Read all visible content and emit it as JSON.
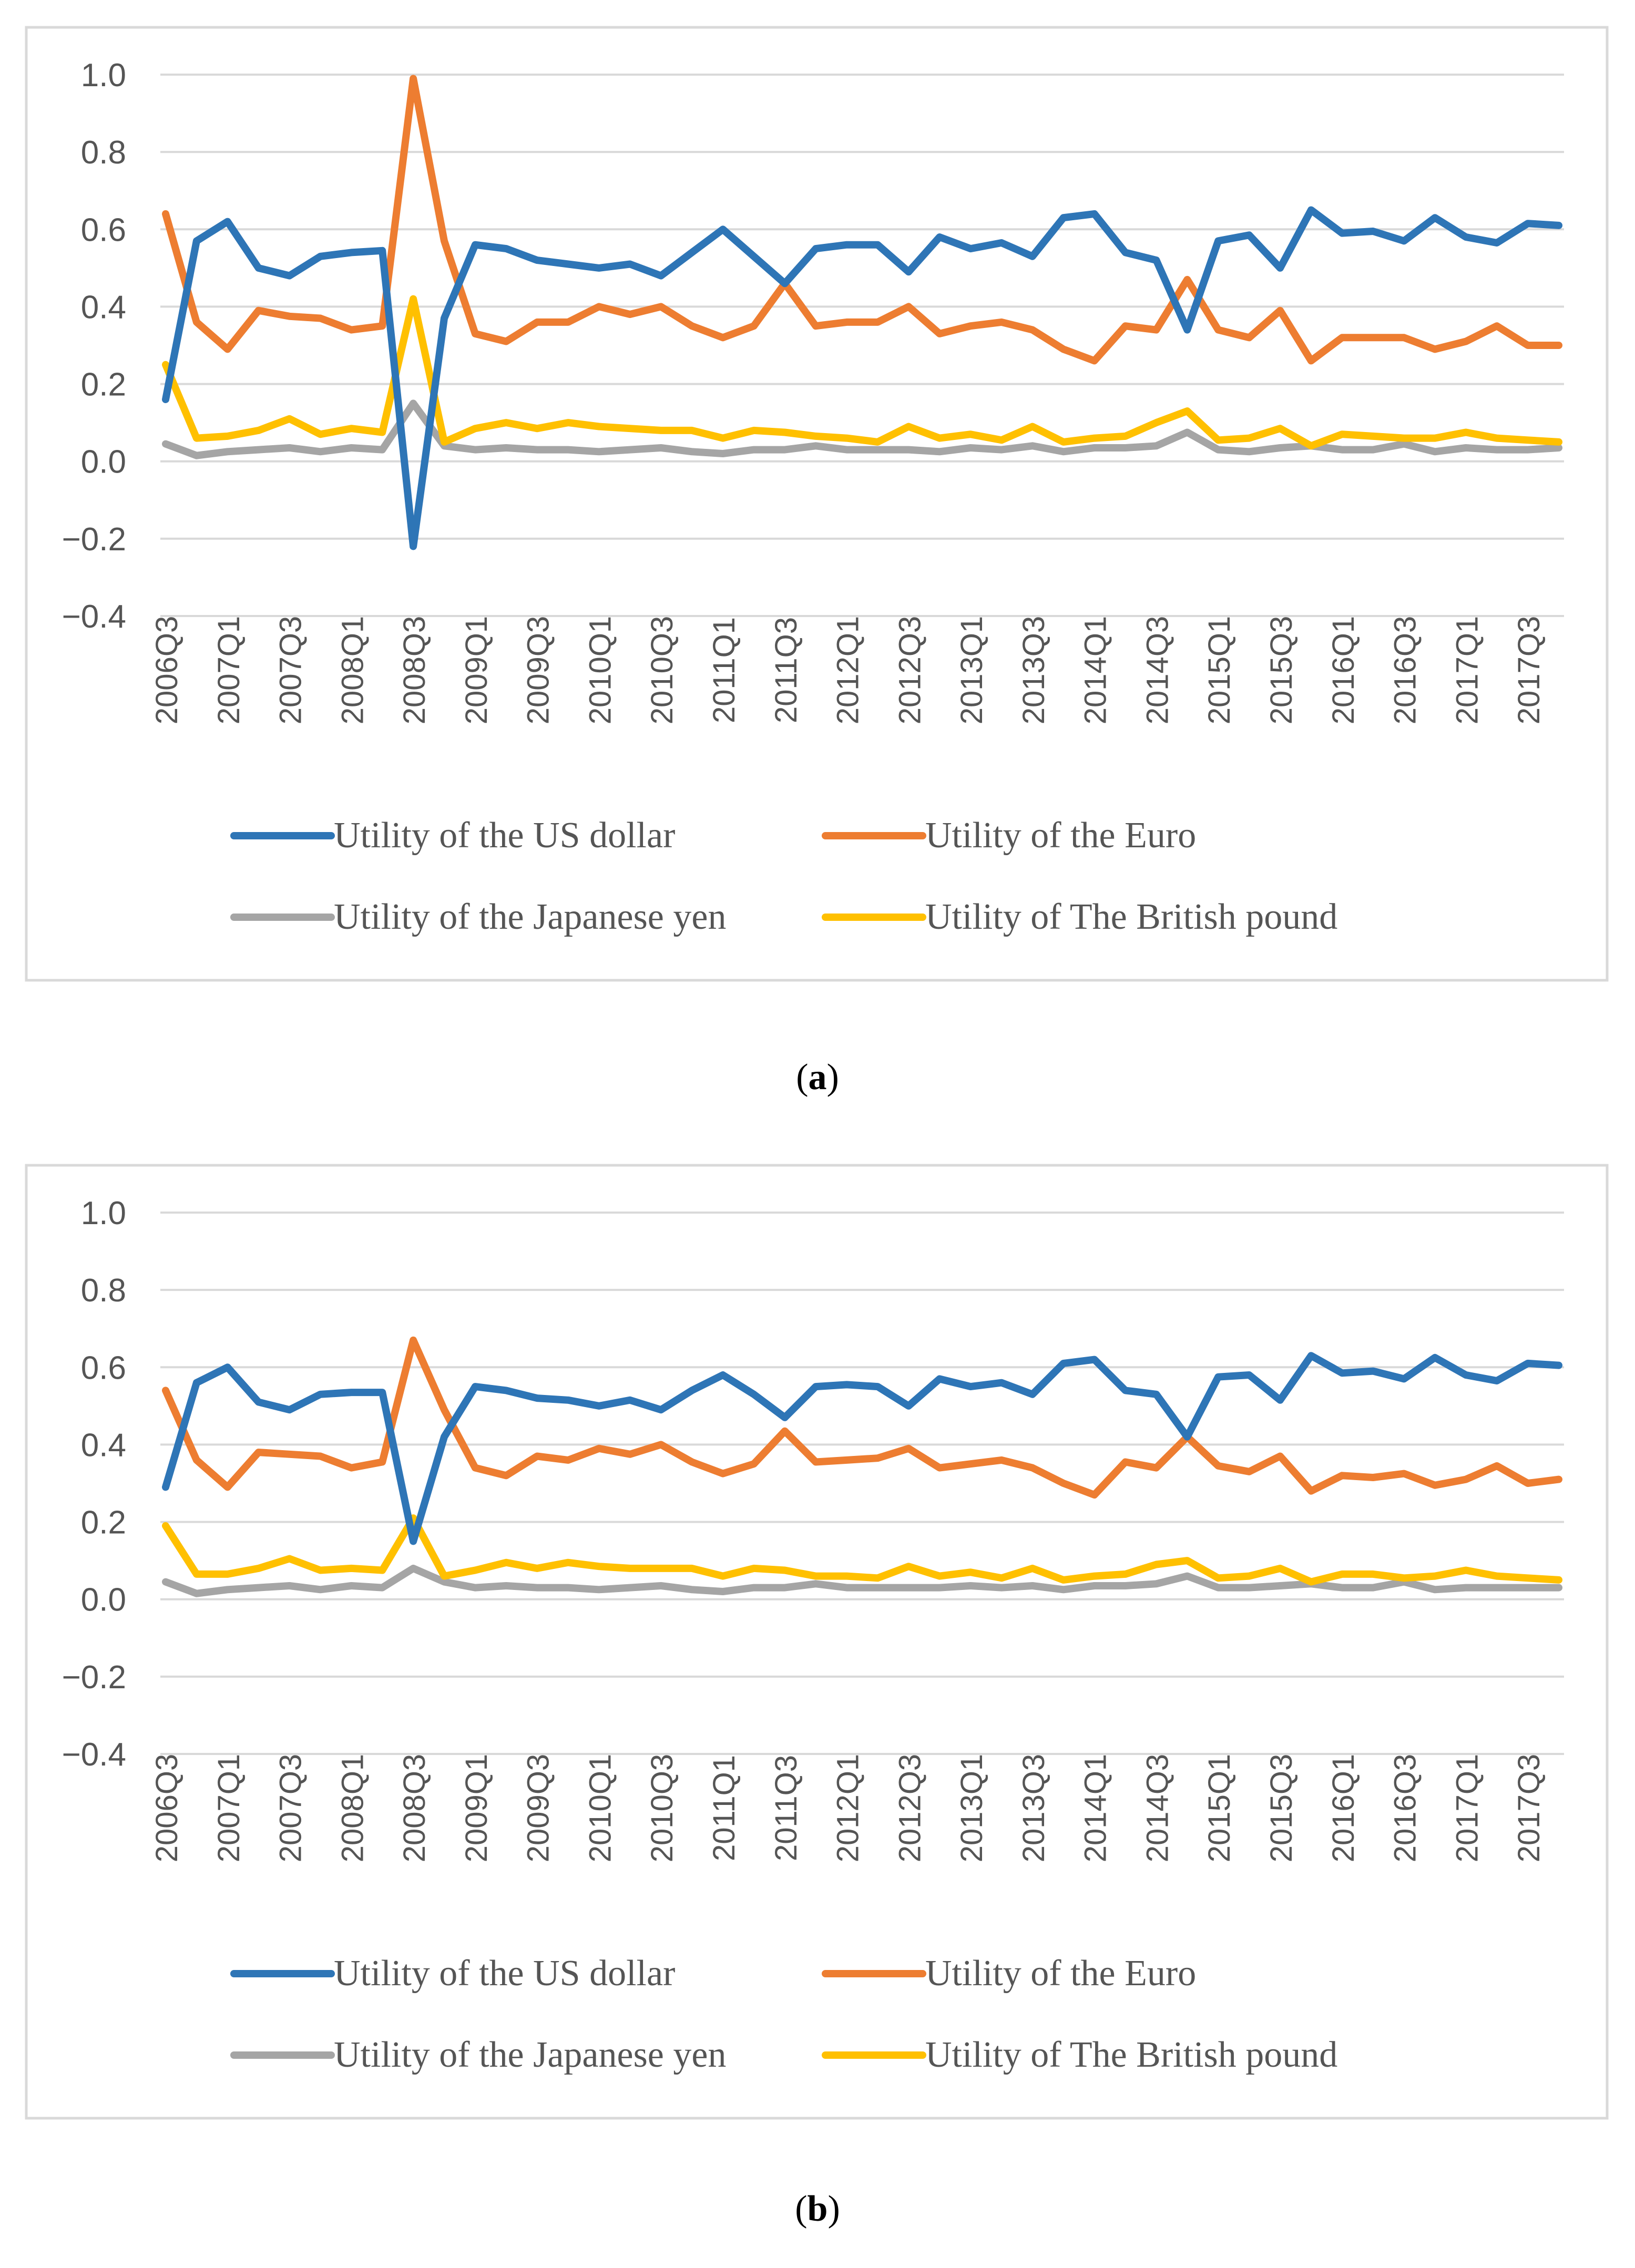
{
  "charts": [
    {
      "caption_open": "(",
      "caption_letter": "a",
      "caption_close": ")",
      "chart_data": {
        "type": "line",
        "ylim": [
          -0.4,
          1.0
        ],
        "yticks": [
          "1.0",
          "0.8",
          "0.6",
          "0.4",
          "0.2",
          "0.0",
          "−0.2",
          "−0.4"
        ],
        "ytick_values": [
          1.0,
          0.8,
          0.6,
          0.4,
          0.2,
          0.0,
          -0.2,
          -0.4
        ],
        "x": [
          "2006Q3",
          "2006Q4",
          "2007Q1",
          "2007Q2",
          "2007Q3",
          "2007Q4",
          "2008Q1",
          "2008Q2",
          "2008Q3",
          "2008Q4",
          "2009Q1",
          "2009Q2",
          "2009Q3",
          "2009Q4",
          "2010Q1",
          "2010Q2",
          "2010Q3",
          "2010Q4",
          "2011Q1",
          "2011Q2",
          "2011Q3",
          "2011Q4",
          "2012Q1",
          "2012Q2",
          "2012Q3",
          "2012Q4",
          "2013Q1",
          "2013Q2",
          "2013Q3",
          "2013Q4",
          "2014Q1",
          "2014Q2",
          "2014Q3",
          "2014Q4",
          "2015Q1",
          "2015Q2",
          "2015Q3",
          "2015Q4",
          "2016Q1",
          "2016Q2",
          "2016Q3",
          "2016Q4",
          "2017Q1",
          "2017Q2",
          "2017Q3",
          "2017Q4"
        ],
        "xtick_labels": [
          "2006Q3",
          "2007Q1",
          "2007Q3",
          "2008Q1",
          "2008Q3",
          "2009Q1",
          "2009Q3",
          "2010Q1",
          "2010Q3",
          "2011Q1",
          "2011Q3",
          "2012Q1",
          "2012Q3",
          "2013Q1",
          "2013Q3",
          "2014Q1",
          "2014Q3",
          "2015Q1",
          "2015Q3",
          "2016Q1",
          "2016Q3",
          "2017Q1",
          "2017Q3"
        ],
        "series": [
          {
            "name": "Utility of the US dollar",
            "color": "#2E75B6",
            "values": [
              0.16,
              0.57,
              0.62,
              0.5,
              0.48,
              0.53,
              0.54,
              0.545,
              -0.22,
              0.37,
              0.56,
              0.55,
              0.52,
              0.51,
              0.5,
              0.51,
              0.48,
              0.54,
              0.6,
              0.53,
              0.46,
              0.55,
              0.56,
              0.56,
              0.49,
              0.58,
              0.55,
              0.565,
              0.53,
              0.63,
              0.64,
              0.54,
              0.52,
              0.34,
              0.57,
              0.585,
              0.5,
              0.65,
              0.59,
              0.595,
              0.57,
              0.63,
              0.58,
              0.565,
              0.615,
              0.61
            ]
          },
          {
            "name": "Utility of the Euro",
            "color": "#ED7D31",
            "values": [
              0.64,
              0.36,
              0.29,
              0.39,
              0.375,
              0.37,
              0.34,
              0.35,
              0.99,
              0.57,
              0.33,
              0.31,
              0.36,
              0.36,
              0.4,
              0.38,
              0.4,
              0.35,
              0.32,
              0.35,
              0.46,
              0.35,
              0.36,
              0.36,
              0.4,
              0.33,
              0.35,
              0.36,
              0.34,
              0.29,
              0.26,
              0.35,
              0.34,
              0.47,
              0.34,
              0.32,
              0.39,
              0.26,
              0.32,
              0.32,
              0.32,
              0.29,
              0.31,
              0.35,
              0.3,
              0.3
            ]
          },
          {
            "name": "Utility of the Japanese yen",
            "color": "#A5A5A5",
            "values": [
              0.045,
              0.015,
              0.025,
              0.03,
              0.035,
              0.025,
              0.035,
              0.03,
              0.15,
              0.04,
              0.03,
              0.035,
              0.03,
              0.03,
              0.025,
              0.03,
              0.035,
              0.025,
              0.02,
              0.03,
              0.03,
              0.04,
              0.03,
              0.03,
              0.03,
              0.025,
              0.035,
              0.03,
              0.04,
              0.025,
              0.035,
              0.035,
              0.04,
              0.075,
              0.03,
              0.025,
              0.035,
              0.04,
              0.03,
              0.03,
              0.045,
              0.025,
              0.035,
              0.03,
              0.03,
              0.035
            ]
          },
          {
            "name": "Utility of The British pound",
            "color": "#FFC000",
            "values": [
              0.25,
              0.06,
              0.065,
              0.08,
              0.11,
              0.07,
              0.085,
              0.075,
              0.42,
              0.05,
              0.085,
              0.1,
              0.085,
              0.1,
              0.09,
              0.085,
              0.08,
              0.08,
              0.06,
              0.08,
              0.075,
              0.065,
              0.06,
              0.05,
              0.09,
              0.06,
              0.07,
              0.055,
              0.09,
              0.05,
              0.06,
              0.065,
              0.1,
              0.13,
              0.055,
              0.06,
              0.085,
              0.04,
              0.07,
              0.065,
              0.06,
              0.06,
              0.075,
              0.06,
              0.055,
              0.05
            ]
          }
        ],
        "legend_position": "bottom",
        "grid": true
      }
    },
    {
      "caption_open": "(",
      "caption_letter": "b",
      "caption_close": ")",
      "chart_data": {
        "type": "line",
        "ylim": [
          -0.4,
          1.0
        ],
        "yticks": [
          "1.0",
          "0.8",
          "0.6",
          "0.4",
          "0.2",
          "0.0",
          "−0.2",
          "−0.4"
        ],
        "ytick_values": [
          1.0,
          0.8,
          0.6,
          0.4,
          0.2,
          0.0,
          -0.2,
          -0.4
        ],
        "x": [
          "2006Q3",
          "2006Q4",
          "2007Q1",
          "2007Q2",
          "2007Q3",
          "2007Q4",
          "2008Q1",
          "2008Q2",
          "2008Q3",
          "2008Q4",
          "2009Q1",
          "2009Q2",
          "2009Q3",
          "2009Q4",
          "2010Q1",
          "2010Q2",
          "2010Q3",
          "2010Q4",
          "2011Q1",
          "2011Q2",
          "2011Q3",
          "2011Q4",
          "2012Q1",
          "2012Q2",
          "2012Q3",
          "2012Q4",
          "2013Q1",
          "2013Q2",
          "2013Q3",
          "2013Q4",
          "2014Q1",
          "2014Q2",
          "2014Q3",
          "2014Q4",
          "2015Q1",
          "2015Q2",
          "2015Q3",
          "2015Q4",
          "2016Q1",
          "2016Q2",
          "2016Q3",
          "2016Q4",
          "2017Q1",
          "2017Q2",
          "2017Q3",
          "2017Q4"
        ],
        "xtick_labels": [
          "2006Q3",
          "2007Q1",
          "2007Q3",
          "2008Q1",
          "2008Q3",
          "2009Q1",
          "2009Q3",
          "2010Q1",
          "2010Q3",
          "2011Q1",
          "2011Q3",
          "2012Q1",
          "2012Q3",
          "2013Q1",
          "2013Q3",
          "2014Q1",
          "2014Q3",
          "2015Q1",
          "2015Q3",
          "2016Q1",
          "2016Q3",
          "2017Q1",
          "2017Q3"
        ],
        "series": [
          {
            "name": "Utility of the US dollar",
            "color": "#2E75B6",
            "values": [
              0.29,
              0.56,
              0.6,
              0.51,
              0.49,
              0.53,
              0.535,
              0.535,
              0.15,
              0.42,
              0.55,
              0.54,
              0.52,
              0.515,
              0.5,
              0.515,
              0.49,
              0.54,
              0.58,
              0.53,
              0.47,
              0.55,
              0.555,
              0.55,
              0.5,
              0.57,
              0.55,
              0.56,
              0.53,
              0.61,
              0.62,
              0.54,
              0.53,
              0.42,
              0.575,
              0.58,
              0.515,
              0.63,
              0.585,
              0.59,
              0.57,
              0.625,
              0.58,
              0.565,
              0.61,
              0.605
            ]
          },
          {
            "name": "Utility of the Euro",
            "color": "#ED7D31",
            "values": [
              0.54,
              0.36,
              0.29,
              0.38,
              0.375,
              0.37,
              0.34,
              0.355,
              0.67,
              0.49,
              0.34,
              0.32,
              0.37,
              0.36,
              0.39,
              0.375,
              0.4,
              0.355,
              0.325,
              0.35,
              0.435,
              0.355,
              0.36,
              0.365,
              0.39,
              0.34,
              0.35,
              0.36,
              0.34,
              0.3,
              0.27,
              0.355,
              0.34,
              0.42,
              0.345,
              0.33,
              0.37,
              0.28,
              0.32,
              0.315,
              0.325,
              0.295,
              0.31,
              0.345,
              0.3,
              0.31
            ]
          },
          {
            "name": "Utility of the Japanese yen",
            "color": "#A5A5A5",
            "values": [
              0.045,
              0.015,
              0.025,
              0.03,
              0.035,
              0.025,
              0.035,
              0.03,
              0.08,
              0.045,
              0.03,
              0.035,
              0.03,
              0.03,
              0.025,
              0.03,
              0.035,
              0.025,
              0.02,
              0.03,
              0.03,
              0.04,
              0.03,
              0.03,
              0.03,
              0.03,
              0.035,
              0.03,
              0.035,
              0.025,
              0.035,
              0.035,
              0.04,
              0.06,
              0.03,
              0.03,
              0.035,
              0.04,
              0.03,
              0.03,
              0.045,
              0.025,
              0.03,
              0.03,
              0.03,
              0.03
            ]
          },
          {
            "name": "Utility of The British pound",
            "color": "#FFC000",
            "values": [
              0.19,
              0.065,
              0.065,
              0.08,
              0.105,
              0.075,
              0.08,
              0.075,
              0.21,
              0.06,
              0.075,
              0.095,
              0.08,
              0.095,
              0.085,
              0.08,
              0.08,
              0.08,
              0.06,
              0.08,
              0.075,
              0.06,
              0.06,
              0.055,
              0.085,
              0.06,
              0.07,
              0.055,
              0.08,
              0.05,
              0.06,
              0.065,
              0.09,
              0.1,
              0.055,
              0.06,
              0.08,
              0.045,
              0.065,
              0.065,
              0.055,
              0.06,
              0.075,
              0.06,
              0.055,
              0.05
            ]
          }
        ],
        "legend_position": "bottom",
        "grid": true
      }
    }
  ]
}
